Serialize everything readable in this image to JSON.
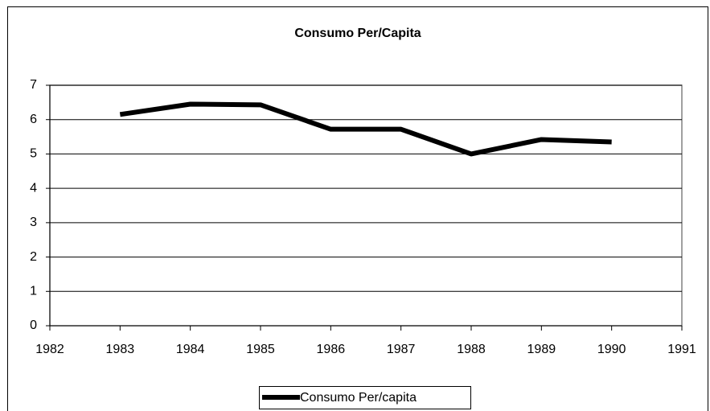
{
  "chart_data": {
    "type": "line",
    "title": "Consumo Per/Capita",
    "x": [
      1983,
      1984,
      1985,
      1986,
      1987,
      1988,
      1989,
      1990
    ],
    "series": [
      {
        "name": "Consumo Per/capita",
        "color": "#000000",
        "values": [
          6.15,
          6.45,
          6.43,
          5.72,
          5.72,
          5.0,
          5.42,
          5.35
        ]
      }
    ],
    "xlim": [
      1982,
      1991
    ],
    "xticks": [
      1982,
      1983,
      1984,
      1985,
      1986,
      1987,
      1988,
      1989,
      1990,
      1991
    ],
    "ylim": [
      0,
      7
    ],
    "yticks": [
      0,
      1,
      2,
      3,
      4,
      5,
      6,
      7
    ],
    "grid": true,
    "legend": "bottom"
  }
}
